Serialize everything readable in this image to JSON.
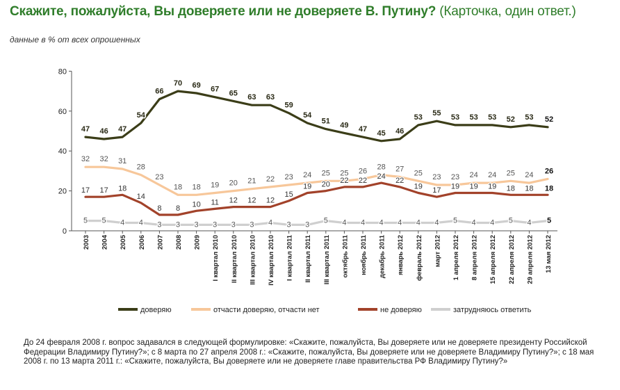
{
  "header": {
    "title": "Скажите, пожалуйста, Вы доверяете или не доверяете В. Путину?",
    "title_note": "(Карточка, один ответ.)",
    "subtitle": "данные в % от всех опрошенных"
  },
  "footnote": "До 24 февраля 2008 г. вопрос задавался в следующей формулировке: «Скажите, пожалуйста, Вы доверяете или не доверяете президенту Российской Федерации Владимиру Путину?»; с 8 марта по 27 апреля 2008 г.: «Скажите, пожалуйста, Вы доверяете или не доверяете Владимиру Путину?»; с 18 мая 2008 г. по 13 марта 2011 г.: «Скажите, пожалуйста, Вы доверяете или не доверяете главе правительства РФ Владимиру Путину?»",
  "chart_data": {
    "type": "line",
    "categories": [
      "2003",
      "2004",
      "2005",
      "2006",
      "2007",
      "2008",
      "2009",
      "I квартал 2010",
      "II квартал 2010",
      "III квартал 2010",
      "IV квартал 2010",
      "I квартал 2011",
      "II квартал 2011",
      "III квартал 2011",
      "октябрь 2011",
      "ноябрь 2011",
      "декабрь 2011",
      "январь 2012",
      "февраль 2012",
      "март 2012",
      "1 апреля 2012",
      "8 апреля 2012",
      "15 апреля 2012",
      "22 апреля 2012",
      "29 апреля 2012",
      "13 мая 2012"
    ],
    "y_ticks": [
      0,
      20,
      40,
      60,
      80
    ],
    "ylim": [
      0,
      80
    ],
    "grid": false,
    "legend_position": "bottom",
    "series": [
      {
        "name": "доверяю",
        "color": "#3b3d18",
        "values": [
          47,
          46,
          47,
          54,
          66,
          70,
          69,
          67,
          65,
          63,
          63,
          59,
          54,
          51,
          49,
          47,
          45,
          46,
          53,
          55,
          53,
          53,
          53,
          52,
          53,
          52
        ]
      },
      {
        "name": "отчасти доверяю, отчасти нет",
        "color": "#f7c79a",
        "values": [
          32,
          32,
          31,
          28,
          23,
          18,
          18,
          19,
          20,
          21,
          22,
          23,
          24,
          25,
          25,
          26,
          28,
          27,
          25,
          23,
          23,
          24,
          24,
          25,
          24,
          26
        ]
      },
      {
        "name": "не доверяю",
        "color": "#a2422a",
        "values": [
          17,
          17,
          18,
          14,
          8,
          8,
          10,
          11,
          12,
          12,
          12,
          15,
          19,
          20,
          22,
          22,
          24,
          22,
          19,
          17,
          19,
          19,
          19,
          18,
          18,
          18
        ]
      },
      {
        "name": "затрудняюсь ответить",
        "color": "#cfcfcf",
        "values": [
          5,
          5,
          4,
          4,
          3,
          3,
          3,
          3,
          3,
          3,
          4,
          3,
          3,
          5,
          4,
          4,
          4,
          4,
          4,
          4,
          5,
          4,
          4,
          5,
          4,
          5
        ]
      }
    ]
  }
}
